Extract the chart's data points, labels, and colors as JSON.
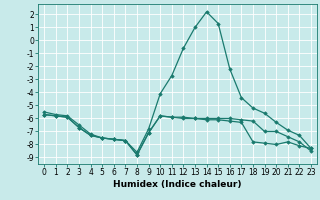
{
  "x": [
    0,
    1,
    2,
    3,
    4,
    5,
    6,
    7,
    8,
    9,
    10,
    11,
    12,
    13,
    14,
    15,
    16,
    17,
    18,
    19,
    20,
    21,
    22,
    23
  ],
  "line1": [
    -5.5,
    -5.7,
    -5.8,
    -6.5,
    -7.2,
    -7.5,
    -7.6,
    -7.7,
    -8.6,
    -6.8,
    -4.1,
    -2.7,
    -0.6,
    1.0,
    2.2,
    1.3,
    -2.2,
    -4.4,
    -5.2,
    -5.6,
    -6.3,
    -6.9,
    -7.3,
    -8.3
  ],
  "line2": [
    -5.7,
    -5.8,
    -5.9,
    -6.7,
    -7.3,
    -7.5,
    -7.6,
    -7.7,
    -8.8,
    -7.1,
    -5.8,
    -5.9,
    -6.0,
    -6.0,
    -6.1,
    -6.1,
    -6.2,
    -6.3,
    -7.8,
    -7.9,
    -8.0,
    -7.8,
    -8.1,
    -8.3
  ],
  "line3": [
    -5.7,
    -5.8,
    -5.9,
    -6.7,
    -7.3,
    -7.5,
    -7.6,
    -7.7,
    -8.8,
    -7.1,
    -5.8,
    -5.9,
    -5.9,
    -6.0,
    -6.0,
    -6.0,
    -6.0,
    -6.1,
    -6.2,
    -7.0,
    -7.0,
    -7.4,
    -7.8,
    -8.5
  ],
  "xlim": [
    -0.5,
    23.5
  ],
  "ylim": [
    -9.5,
    2.8
  ],
  "yticks": [
    2,
    1,
    0,
    -1,
    -2,
    -3,
    -4,
    -5,
    -6,
    -7,
    -8,
    -9
  ],
  "xticks": [
    0,
    1,
    2,
    3,
    4,
    5,
    6,
    7,
    8,
    9,
    10,
    11,
    12,
    13,
    14,
    15,
    16,
    17,
    18,
    19,
    20,
    21,
    22,
    23
  ],
  "xlabel": "Humidex (Indice chaleur)",
  "line_color": "#1a7a6e",
  "bg_color": "#c8eaea",
  "grid_color": "#ffffff",
  "marker": "D",
  "marker_size": 1.8,
  "line_width": 0.9,
  "tick_fontsize": 5.5,
  "xlabel_fontsize": 6.5
}
